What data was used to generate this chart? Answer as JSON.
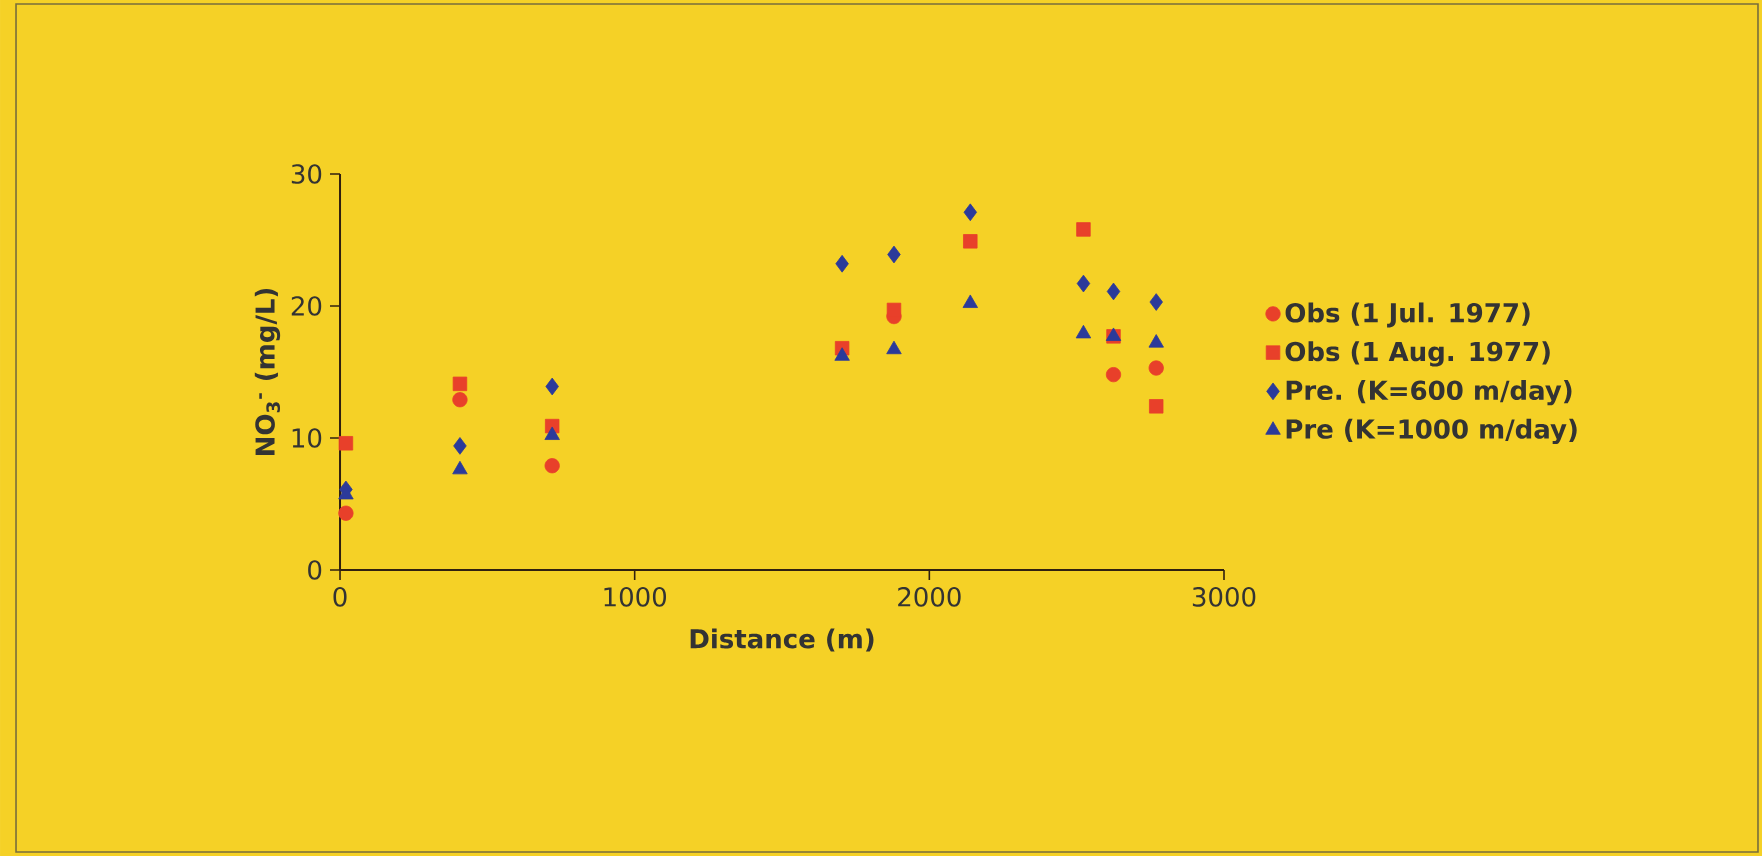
{
  "chart_data": {
    "type": "scatter",
    "xlabel": "Distance (m)",
    "ylabel": "NO$_{3}$$^{-}$ (mg/L)",
    "xlim": [
      0,
      3000
    ],
    "xticks": [
      0,
      1000,
      2000,
      3000
    ],
    "ylim": [
      0,
      30
    ],
    "yticks": [
      0,
      10,
      20,
      30
    ],
    "grid": false,
    "legend": "right",
    "series": [
      {
        "name": "Obs (1 Jul. 1977)",
        "color": "#e8402a",
        "marker": "circle",
        "x": [
          20,
          407,
          720,
          1704,
          1880,
          2139,
          2523,
          2625,
          2770
        ],
        "values": [
          4.3,
          12.9,
          7.9,
          null,
          19.2,
          null,
          null,
          14.8,
          15.3
        ]
      },
      {
        "name": "Obs (1 Aug. 1977)",
        "color": "#e8402a",
        "marker": "square",
        "x": [
          20,
          407,
          720,
          1704,
          1880,
          2139,
          2523,
          2625,
          2770
        ],
        "values": [
          9.6,
          14.1,
          10.9,
          16.8,
          19.7,
          24.9,
          25.8,
          17.7,
          12.4
        ]
      },
      {
        "name": "Pre. (K=600 m/day)",
        "color": "#2b3a9a",
        "marker": "diamond",
        "x": [
          20,
          407,
          720,
          1704,
          1880,
          2139,
          2523,
          2625,
          2770
        ],
        "values": [
          6.1,
          9.4,
          13.9,
          23.2,
          23.9,
          27.1,
          21.7,
          21.1,
          20.3
        ]
      },
      {
        "name": "Pre (K=1000 m/day)",
        "color": "#2b3a9a",
        "marker": "triangle",
        "x": [
          20,
          407,
          720,
          1704,
          1880,
          2139,
          2523,
          2625,
          2770
        ],
        "values": [
          5.7,
          7.6,
          10.2,
          16.2,
          16.7,
          20.2,
          17.9,
          17.7,
          17.2
        ]
      }
    ]
  }
}
